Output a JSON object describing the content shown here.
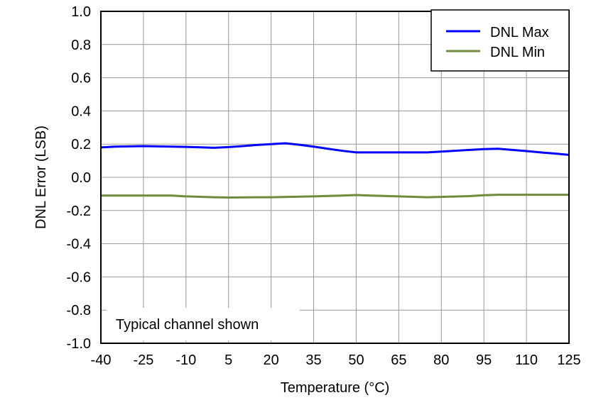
{
  "chart_data": {
    "type": "line",
    "xlabel": "Temperature (°C)",
    "ylabel": "DNL Error (LSB)",
    "xlim": [
      -40,
      125
    ],
    "ylim": [
      -1.0,
      1.0
    ],
    "xticks": [
      "-40",
      "-25",
      "-10",
      "5",
      "20",
      "35",
      "50",
      "65",
      "80",
      "95",
      "110",
      "125"
    ],
    "yticks": [
      "1.0",
      "0.8",
      "0.6",
      "0.4",
      "0.2",
      "0.0",
      "-0.2",
      "-0.4",
      "-0.6",
      "-0.8",
      "-1.0"
    ],
    "grid": true,
    "legend_position": "top-right",
    "annotation": "Typical channel shown",
    "series": [
      {
        "name": "DNL Max",
        "color": "#0000ff",
        "x": [
          -40,
          -35,
          -25,
          -15,
          -10,
          0,
          5,
          10,
          15,
          20,
          25,
          30,
          35,
          40,
          45,
          50,
          65,
          75,
          80,
          85,
          90,
          95,
          100,
          105,
          110,
          115,
          120,
          125
        ],
        "y": [
          0.18,
          0.185,
          0.188,
          0.185,
          0.183,
          0.178,
          0.182,
          0.188,
          0.195,
          0.2,
          0.205,
          0.196,
          0.185,
          0.172,
          0.16,
          0.15,
          0.15,
          0.15,
          0.155,
          0.16,
          0.165,
          0.17,
          0.172,
          0.165,
          0.158,
          0.15,
          0.143,
          0.135
        ]
      },
      {
        "name": "DNL Min",
        "color": "#6e8b3d",
        "x": [
          -40,
          -25,
          -15,
          -10,
          0,
          5,
          15,
          20,
          35,
          45,
          50,
          55,
          65,
          75,
          80,
          90,
          95,
          100,
          110,
          125
        ],
        "y": [
          -0.11,
          -0.11,
          -0.11,
          -0.115,
          -0.12,
          -0.122,
          -0.12,
          -0.12,
          -0.115,
          -0.11,
          -0.107,
          -0.11,
          -0.115,
          -0.12,
          -0.118,
          -0.113,
          -0.108,
          -0.105,
          -0.105,
          -0.105
        ]
      }
    ]
  }
}
